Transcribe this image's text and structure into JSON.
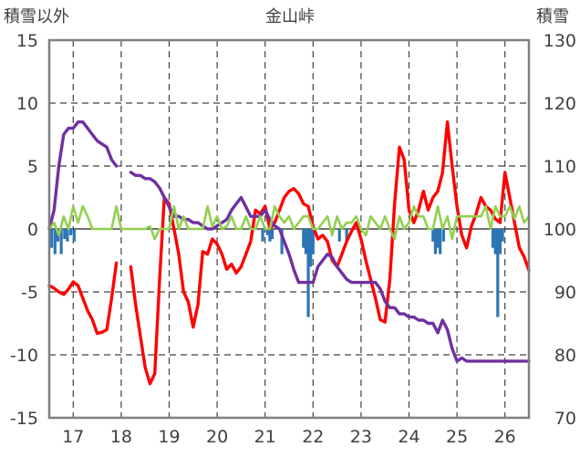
{
  "chart_data": {
    "type": "line",
    "title": "金山峠",
    "left_axis_label": "積雪以外",
    "right_axis_label": "積雪",
    "left_ylim": [
      -15,
      15
    ],
    "left_ticks": [
      15,
      10,
      5,
      0,
      -5,
      -10,
      -15
    ],
    "right_ylim": [
      70,
      130
    ],
    "right_ticks": [
      130,
      120,
      110,
      100,
      90,
      80,
      70
    ],
    "xlim": [
      16.5,
      26.5
    ],
    "x_ticks": [
      17,
      18,
      19,
      20,
      21,
      22,
      23,
      24,
      25,
      26
    ],
    "grid": "dashed vertical",
    "series": [
      {
        "name": "red-line",
        "axis": "left",
        "color": "#ff0000",
        "x": [
          16.5,
          16.6,
          16.7,
          16.8,
          16.9,
          17.0,
          17.1,
          17.2,
          17.3,
          17.4,
          17.5,
          17.6,
          17.7,
          17.8,
          17.9,
          18.0,
          null,
          18.2,
          18.3,
          18.4,
          18.5,
          18.6,
          18.7,
          18.8,
          18.9,
          19.0,
          19.1,
          19.2,
          19.3,
          19.4,
          19.5,
          19.6,
          19.7,
          19.8,
          19.9,
          20.0,
          20.1,
          20.2,
          20.3,
          20.4,
          20.5,
          20.6,
          20.7,
          20.8,
          20.9,
          21.0,
          21.1,
          21.2,
          21.3,
          21.4,
          21.5,
          21.6,
          21.7,
          21.8,
          21.9,
          22.0,
          22.1,
          22.2,
          22.3,
          22.4,
          22.5,
          22.6,
          22.7,
          22.8,
          22.9,
          23.0,
          23.1,
          23.2,
          23.3,
          23.4,
          23.5,
          23.6,
          23.7,
          23.8,
          23.9,
          24.0,
          24.1,
          24.2,
          24.3,
          24.4,
          24.5,
          24.6,
          24.7,
          24.8,
          24.9,
          25.0,
          25.1,
          25.2,
          25.3,
          25.4,
          25.5,
          25.6,
          25.7,
          25.8,
          25.9,
          26.0,
          26.1,
          26.2,
          26.3,
          26.4,
          26.5
        ],
        "values": [
          -4.5,
          -4.7,
          -5.0,
          -5.2,
          -4.8,
          -4.2,
          -4.5,
          -5.5,
          -6.5,
          -7.2,
          -8.3,
          -8.2,
          -8.0,
          -5.5,
          -2.7,
          null,
          null,
          -3.0,
          -6.0,
          -8.5,
          -11.0,
          -12.3,
          -11.5,
          -4.0,
          2.5,
          2.0,
          0.0,
          -2.0,
          -5.0,
          -5.8,
          -7.8,
          -6.0,
          -1.8,
          -2.0,
          -0.8,
          -1.2,
          -2.0,
          -3.2,
          -2.8,
          -3.5,
          -3.0,
          -2.0,
          -1.0,
          1.5,
          1.2,
          1.8,
          0.0,
          0.5,
          1.5,
          2.5,
          3.0,
          3.2,
          2.8,
          2.0,
          1.8,
          0.2,
          -0.8,
          -0.5,
          -1.0,
          -2.5,
          -3.0,
          -2.0,
          -1.0,
          -0.2,
          0.5,
          -0.8,
          -2.5,
          -4.0,
          -5.5,
          -7.2,
          -7.4,
          -4.0,
          2.0,
          6.5,
          5.5,
          1.5,
          0.5,
          1.5,
          3.0,
          1.5,
          2.5,
          3.0,
          4.5,
          8.5,
          5.0,
          1.8,
          -0.5,
          -1.5,
          0.2,
          1.2,
          2.5,
          1.8,
          1.5,
          0.8,
          0.5,
          4.5,
          2.5,
          0.5,
          -1.5,
          -2.2,
          -3.3
        ]
      },
      {
        "name": "purple-line",
        "axis": "right",
        "color": "#7030a0",
        "x": [
          16.5,
          16.6,
          16.7,
          16.8,
          16.9,
          17.0,
          17.1,
          17.2,
          17.3,
          17.4,
          17.5,
          17.6,
          17.7,
          17.8,
          17.9,
          18.0,
          null,
          18.2,
          18.3,
          18.4,
          18.5,
          18.6,
          18.7,
          18.8,
          18.9,
          19.0,
          19.1,
          19.2,
          19.3,
          19.4,
          19.5,
          19.6,
          19.7,
          19.8,
          19.9,
          20.0,
          20.1,
          20.2,
          20.3,
          20.4,
          20.5,
          20.6,
          20.7,
          20.8,
          20.9,
          21.0,
          21.1,
          21.2,
          21.3,
          21.4,
          21.5,
          21.6,
          21.7,
          21.8,
          21.9,
          22.0,
          22.1,
          22.2,
          22.3,
          22.4,
          22.5,
          22.6,
          22.7,
          22.8,
          22.9,
          23.0,
          23.1,
          23.2,
          23.3,
          23.4,
          23.5,
          23.6,
          23.7,
          23.8,
          23.9,
          24.0,
          24.1,
          24.2,
          24.3,
          24.4,
          24.5,
          24.6,
          24.7,
          24.8,
          24.9,
          25.0,
          25.1,
          25.2,
          25.3,
          25.4,
          25.5,
          25.6,
          25.7,
          25.8,
          25.9,
          26.0,
          26.1,
          26.2,
          26.3,
          26.4,
          26.5
        ],
        "values": [
          100,
          103,
          110,
          115,
          116,
          116,
          117,
          117,
          116,
          115,
          114,
          113.5,
          113,
          111,
          110,
          null,
          null,
          109,
          108.5,
          108.5,
          108,
          108,
          107.5,
          106.5,
          105,
          103.5,
          102,
          102,
          101.5,
          101.5,
          101,
          101,
          100.5,
          100,
          100,
          100.5,
          101,
          101.5,
          103,
          104,
          105,
          103.5,
          102,
          102,
          102,
          103,
          101.5,
          100.5,
          100,
          98,
          96,
          93.5,
          91.5,
          91.5,
          91.5,
          91.5,
          94,
          95,
          96,
          95.5,
          94,
          93,
          92,
          91.5,
          91.5,
          91.5,
          91.5,
          91.5,
          91.5,
          90.5,
          88.5,
          87.5,
          87.5,
          86.5,
          86.5,
          86,
          86,
          85.5,
          85.5,
          85,
          85,
          83.5,
          85.5,
          84,
          81,
          79,
          79.5,
          79,
          79,
          79,
          79,
          79,
          79,
          79,
          79,
          79,
          79,
          79,
          79,
          79,
          79
        ]
      },
      {
        "name": "green-line",
        "axis": "left",
        "color": "#92d050",
        "x": [
          16.5,
          16.6,
          16.7,
          16.8,
          16.9,
          17.0,
          17.1,
          17.2,
          17.3,
          17.4,
          17.5,
          17.6,
          17.7,
          17.8,
          17.9,
          18.0,
          18.1,
          18.2,
          18.3,
          18.4,
          18.5,
          18.6,
          18.7,
          18.8,
          18.9,
          19.0,
          19.1,
          19.2,
          19.3,
          19.4,
          19.5,
          19.6,
          19.7,
          19.8,
          19.9,
          20.0,
          20.1,
          20.2,
          20.3,
          20.4,
          20.5,
          20.6,
          20.7,
          20.8,
          20.9,
          21.0,
          21.1,
          21.2,
          21.3,
          21.4,
          21.5,
          21.6,
          21.7,
          21.8,
          21.9,
          22.0,
          22.1,
          22.2,
          22.3,
          22.4,
          22.5,
          22.6,
          22.7,
          22.8,
          22.9,
          23.0,
          23.1,
          23.2,
          23.3,
          23.4,
          23.5,
          23.6,
          23.7,
          23.8,
          23.9,
          24.0,
          24.1,
          24.2,
          24.3,
          24.4,
          24.5,
          24.6,
          24.7,
          24.8,
          24.9,
          25.0,
          25.1,
          25.2,
          25.3,
          25.4,
          25.5,
          25.6,
          25.7,
          25.8,
          25.9,
          26.0,
          26.1,
          26.2,
          26.3,
          26.4,
          26.5
        ],
        "values": [
          0,
          0.5,
          -0.5,
          1.0,
          0,
          1.8,
          0.5,
          1.8,
          1.0,
          0,
          0,
          0,
          0,
          0,
          1.8,
          0,
          0,
          0,
          0,
          0,
          0,
          0.2,
          -0.8,
          0,
          0,
          0,
          1.8,
          0,
          1.0,
          0,
          0,
          0,
          0,
          1.8,
          0.2,
          1.0,
          0,
          0.2,
          1.0,
          0,
          0,
          1.0,
          0,
          0,
          1.0,
          0,
          0,
          1.8,
          1.0,
          0.5,
          1.0,
          0,
          0.5,
          1.0,
          1.0,
          0,
          0,
          0.5,
          1.0,
          -0.5,
          1.0,
          0,
          0.5,
          0.5,
          1.0,
          0,
          -0.5,
          1.0,
          0.5,
          0,
          1.0,
          0,
          -0.8,
          1.0,
          0,
          0.5,
          1.8,
          1.0,
          1.0,
          0,
          0,
          1.8,
          0,
          1.0,
          -0.8,
          1.0,
          1.0,
          1.0,
          1.0,
          1.0,
          1.0,
          1.8,
          0,
          1.8,
          1.0,
          1.0,
          1.8,
          0.8,
          1.8,
          0.5,
          1.0
        ]
      },
      {
        "name": "blue-bars",
        "type": "bar",
        "axis": "left",
        "color": "#2e75b6",
        "x": [
          16.55,
          16.62,
          16.68,
          16.75,
          16.82,
          16.88,
          16.95,
          17.02,
          20.95,
          21.05,
          21.1,
          21.15,
          21.35,
          21.8,
          21.85,
          21.9,
          21.95,
          22.0,
          22.55,
          22.7,
          24.5,
          24.55,
          24.6,
          24.65,
          24.72,
          25.75,
          25.8,
          25.85,
          25.9,
          25.95
        ],
        "values": [
          -1.5,
          -2.0,
          -1.0,
          -2.0,
          -0.8,
          -1.0,
          -0.5,
          -1.0,
          -1.0,
          -0.5,
          -1.0,
          -0.8,
          -2.0,
          -1.5,
          -2.0,
          -7.0,
          -3.0,
          -2.0,
          -1.0,
          -1.0,
          -1.0,
          -2.0,
          -1.5,
          -2.0,
          -1.0,
          -1.5,
          -2.0,
          -7.0,
          -2.0,
          -1.0
        ]
      }
    ]
  }
}
